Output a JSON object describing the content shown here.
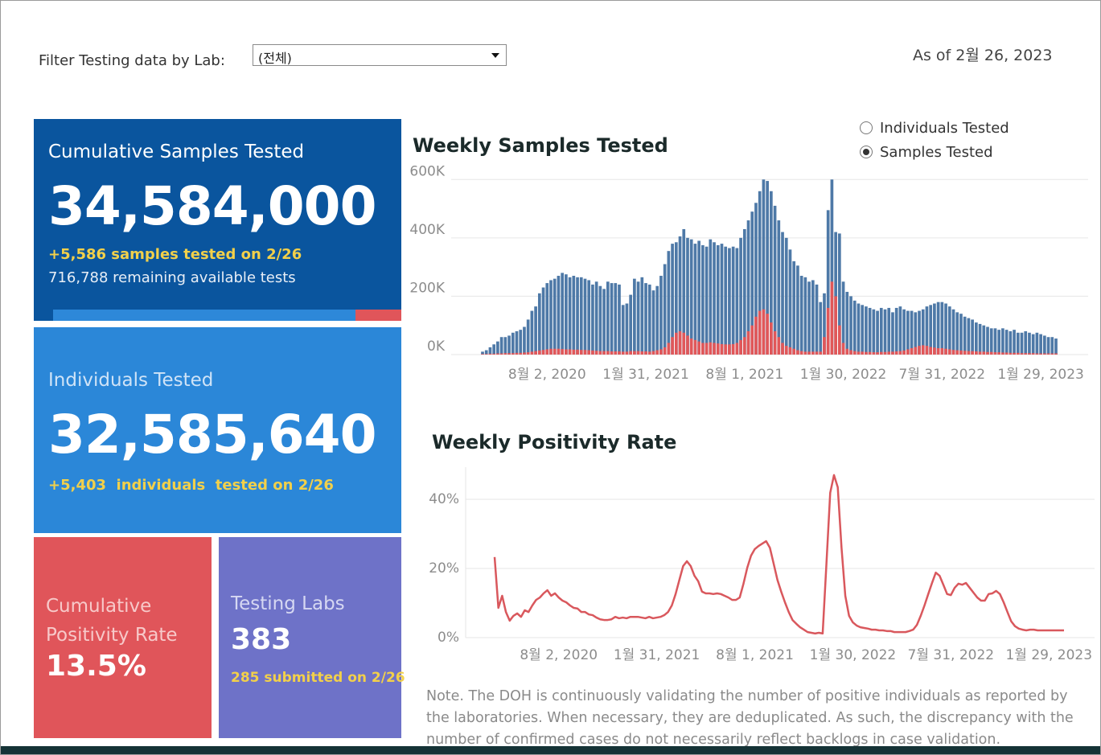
{
  "filter": {
    "label": "Filter Testing data by Lab:",
    "selected": "(전체)"
  },
  "as_of": "As of 2월 26, 2023",
  "cards": [
    {
      "title": "Cumulative Samples Tested",
      "value": "34,584,000",
      "detail": "+5,586 samples tested on 2/26",
      "note": "716,788 remaining available tests"
    },
    {
      "title": "Individuals Tested",
      "value": "32,585,640",
      "detail": "+5,403  individuals  tested on 2/26"
    },
    {
      "title": "Cumulative Positivity Rate",
      "value": "13.5%"
    },
    {
      "title": "Testing Labs",
      "value": "383",
      "detail": "285 submitted on 2/26"
    }
  ],
  "toggle": {
    "options": [
      "Individuals Tested",
      "Samples Tested"
    ],
    "selected": 1
  },
  "chart_data": [
    {
      "type": "bar",
      "title": "Weekly Samples Tested",
      "bar_mode": "overlay",
      "grid": true,
      "x": [
        "4월 5, 2020",
        "4월 12, 2020",
        "4월 19, 2020",
        "4월 26, 2020",
        "5월 3, 2020",
        "5월 10, 2020",
        "5월 17, 2020",
        "5월 24, 2020",
        "5월 31, 2020",
        "6월 7, 2020",
        "6월 14, 2020",
        "6월 21, 2020",
        "6월 28, 2020",
        "7월 5, 2020",
        "7월 12, 2020",
        "7월 19, 2020",
        "7월 26, 2020",
        "8월 2, 2020",
        "8월 9, 2020",
        "8월 16, 2020",
        "8월 23, 2020",
        "8월 30, 2020",
        "9월 6, 2020",
        "9월 13, 2020",
        "9월 20, 2020",
        "9월 27, 2020",
        "10월 4, 2020",
        "10월 11, 2020",
        "10월 18, 2020",
        "10월 25, 2020",
        "11월 1, 2020",
        "11월 8, 2020",
        "11월 15, 2020",
        "11월 22, 2020",
        "11월 29, 2020",
        "12월 6, 2020",
        "12월 13, 2020",
        "12월 20, 2020",
        "12월 27, 2020",
        "1월 3, 2021",
        "1월 10, 2021",
        "1월 17, 2021",
        "1월 24, 2021",
        "1월 31, 2021",
        "2월 7, 2021",
        "2월 14, 2021",
        "2월 21, 2021",
        "2월 28, 2021",
        "3월 7, 2021",
        "3월 14, 2021",
        "3월 21, 2021",
        "3월 28, 2021",
        "4월 4, 2021",
        "4월 11, 2021",
        "4월 18, 2021",
        "4월 25, 2021",
        "5월 2, 2021",
        "5월 9, 2021",
        "5월 16, 2021",
        "5월 23, 2021",
        "5월 30, 2021",
        "6월 6, 2021",
        "6월 13, 2021",
        "6월 20, 2021",
        "6월 27, 2021",
        "7월 4, 2021",
        "7월 11, 2021",
        "7월 18, 2021",
        "7월 25, 2021",
        "8월 1, 2021",
        "8월 8, 2021",
        "8월 15, 2021",
        "8월 22, 2021",
        "8월 29, 2021",
        "9월 5, 2021",
        "9월 12, 2021",
        "9월 19, 2021",
        "9월 26, 2021",
        "10월 3, 2021",
        "10월 10, 2021",
        "10월 17, 2021",
        "10월 24, 2021",
        "10월 31, 2021",
        "11월 7, 2021",
        "11월 14, 2021",
        "11월 21, 2021",
        "11월 28, 2021",
        "12월 5, 2021",
        "12월 12, 2021",
        "12월 19, 2021",
        "12월 26, 2021",
        "1월 2, 2022",
        "1월 9, 2022",
        "1월 16, 2022",
        "1월 23, 2022",
        "1월 30, 2022",
        "2월 6, 2022",
        "2월 13, 2022",
        "2월 20, 2022",
        "2월 27, 2022",
        "3월 6, 2022",
        "3월 13, 2022",
        "3월 20, 2022",
        "3월 27, 2022",
        "4월 3, 2022",
        "4월 10, 2022",
        "4월 17, 2022",
        "4월 24, 2022",
        "5월 1, 2022",
        "5월 8, 2022",
        "5월 15, 2022",
        "5월 22, 2022",
        "5월 29, 2022",
        "6월 5, 2022",
        "6월 12, 2022",
        "6월 19, 2022",
        "6월 26, 2022",
        "7월 3, 2022",
        "7월 10, 2022",
        "7월 17, 2022",
        "7월 24, 2022",
        "7월 31, 2022",
        "8월 7, 2022",
        "8월 14, 2022",
        "8월 21, 2022",
        "8월 28, 2022",
        "9월 4, 2022",
        "9월 11, 2022",
        "9월 18, 2022",
        "9월 25, 2022",
        "10월 2, 2022",
        "10월 9, 2022",
        "10월 16, 2022",
        "10월 23, 2022",
        "10월 30, 2022",
        "11월 6, 2022",
        "11월 13, 2022",
        "11월 20, 2022",
        "11월 27, 2022",
        "12월 4, 2022",
        "12월 11, 2022",
        "12월 18, 2022",
        "12월 25, 2022",
        "1월 1, 2023",
        "1월 8, 2023",
        "1월 15, 2023",
        "1월 22, 2023",
        "1월 29, 2023",
        "2월 5, 2023",
        "2월 12, 2023",
        "2월 19, 2023",
        "2월 26, 2023"
      ],
      "series": [
        {
          "color": "#4e79a7",
          "values": [
            10000,
            15000,
            25000,
            35000,
            45000,
            60000,
            60000,
            65000,
            75000,
            80000,
            85000,
            95000,
            120000,
            150000,
            165000,
            210000,
            230000,
            245000,
            255000,
            260000,
            270000,
            280000,
            275000,
            265000,
            270000,
            265000,
            265000,
            260000,
            255000,
            240000,
            250000,
            235000,
            225000,
            250000,
            245000,
            245000,
            240000,
            170000,
            175000,
            205000,
            260000,
            250000,
            265000,
            245000,
            240000,
            220000,
            235000,
            270000,
            310000,
            355000,
            380000,
            385000,
            405000,
            430000,
            400000,
            395000,
            380000,
            390000,
            375000,
            370000,
            395000,
            385000,
            375000,
            380000,
            370000,
            365000,
            370000,
            365000,
            400000,
            430000,
            460000,
            490000,
            520000,
            560000,
            600000,
            595000,
            560000,
            510000,
            460000,
            420000,
            400000,
            360000,
            320000,
            305000,
            270000,
            265000,
            250000,
            255000,
            240000,
            180000,
            210000,
            495000,
            600000,
            420000,
            415000,
            250000,
            215000,
            200000,
            185000,
            175000,
            170000,
            165000,
            160000,
            155000,
            150000,
            160000,
            155000,
            160000,
            145000,
            160000,
            165000,
            155000,
            150000,
            150000,
            145000,
            150000,
            155000,
            165000,
            170000,
            175000,
            180000,
            180000,
            175000,
            165000,
            155000,
            145000,
            140000,
            130000,
            125000,
            120000,
            110000,
            105000,
            100000,
            95000,
            90000,
            90000,
            85000,
            90000,
            85000,
            80000,
            85000,
            75000,
            75000,
            80000,
            75000,
            70000,
            75000,
            70000,
            65000,
            60000,
            60000,
            55000
          ]
        },
        {
          "color": "#e15759",
          "values": [
            2000,
            2000,
            3000,
            3000,
            4000,
            4000,
            5000,
            5000,
            5000,
            6000,
            6000,
            7000,
            8000,
            10000,
            12000,
            14000,
            16000,
            18000,
            20000,
            20000,
            20000,
            19000,
            18000,
            18000,
            17000,
            17000,
            16000,
            16000,
            15000,
            14000,
            13000,
            12000,
            12000,
            12000,
            11000,
            11000,
            11000,
            10000,
            10000,
            12000,
            12000,
            12000,
            11000,
            11000,
            10000,
            12000,
            15000,
            18000,
            25000,
            40000,
            60000,
            75000,
            80000,
            75000,
            65000,
            55000,
            50000,
            45000,
            40000,
            40000,
            42000,
            40000,
            38000,
            36000,
            35000,
            35000,
            36000,
            40000,
            50000,
            60000,
            80000,
            100000,
            130000,
            150000,
            155000,
            140000,
            110000,
            80000,
            60000,
            40000,
            30000,
            25000,
            20000,
            15000,
            12000,
            10000,
            10000,
            10000,
            10000,
            10000,
            60000,
            160000,
            250000,
            200000,
            100000,
            40000,
            20000,
            15000,
            12000,
            10000,
            10000,
            9000,
            9000,
            8000,
            8000,
            9000,
            9000,
            10000,
            10000,
            11000,
            12000,
            14000,
            18000,
            22000,
            26000,
            30000,
            32000,
            30000,
            26000,
            24000,
            22000,
            22000,
            20000,
            18000,
            16000,
            15000,
            14000,
            13000,
            12000,
            12000,
            11000,
            10000,
            10000,
            9000,
            9000,
            8000,
            8000,
            7000,
            7000,
            6000,
            6000,
            6000,
            5000,
            5000,
            5000,
            5000,
            4000,
            4000,
            4000,
            4000,
            4000,
            4000
          ]
        }
      ],
      "ylim": [
        0,
        620000
      ],
      "yticks": [
        {
          "value": 0,
          "label": "0K"
        },
        {
          "value": 200000,
          "label": "200K"
        },
        {
          "value": 400000,
          "label": "400K"
        },
        {
          "value": 600000,
          "label": "600K"
        }
      ],
      "xticks": [
        "8월 2, 2020",
        "1월 31, 2021",
        "8월 1, 2021",
        "1월 30, 2022",
        "7월 31, 2022",
        "1월 29, 2023"
      ]
    },
    {
      "type": "line",
      "title": "Weekly Positivity Rate",
      "grid": true,
      "x": [
        "4월 5, 2020",
        "4월 12, 2020",
        "4월 19, 2020",
        "4월 26, 2020",
        "5월 3, 2020",
        "5월 10, 2020",
        "5월 17, 2020",
        "5월 24, 2020",
        "5월 31, 2020",
        "6월 7, 2020",
        "6월 14, 2020",
        "6월 21, 2020",
        "6월 28, 2020",
        "7월 5, 2020",
        "7월 12, 2020",
        "7월 19, 2020",
        "7월 26, 2020",
        "8월 2, 2020",
        "8월 9, 2020",
        "8월 16, 2020",
        "8월 23, 2020",
        "8월 30, 2020",
        "9월 6, 2020",
        "9월 13, 2020",
        "9월 20, 2020",
        "9월 27, 2020",
        "10월 4, 2020",
        "10월 11, 2020",
        "10월 18, 2020",
        "10월 25, 2020",
        "11월 1, 2020",
        "11월 8, 2020",
        "11월 15, 2020",
        "11월 22, 2020",
        "11월 29, 2020",
        "12월 6, 2020",
        "12월 13, 2020",
        "12월 20, 2020",
        "12월 27, 2020",
        "1월 3, 2021",
        "1월 10, 2021",
        "1월 17, 2021",
        "1월 24, 2021",
        "1월 31, 2021",
        "2월 7, 2021",
        "2월 14, 2021",
        "2월 21, 2021",
        "2월 28, 2021",
        "3월 7, 2021",
        "3월 14, 2021",
        "3월 21, 2021",
        "3월 28, 2021",
        "4월 4, 2021",
        "4월 11, 2021",
        "4월 18, 2021",
        "4월 25, 2021",
        "5월 2, 2021",
        "5월 9, 2021",
        "5월 16, 2021",
        "5월 23, 2021",
        "5월 30, 2021",
        "6월 6, 2021",
        "6월 13, 2021",
        "6월 20, 2021",
        "6월 27, 2021",
        "7월 4, 2021",
        "7월 11, 2021",
        "7월 18, 2021",
        "7월 25, 2021",
        "8월 1, 2021",
        "8월 8, 2021",
        "8월 15, 2021",
        "8월 22, 2021",
        "8월 29, 2021",
        "9월 5, 2021",
        "9월 12, 2021",
        "9월 19, 2021",
        "9월 26, 2021",
        "10월 3, 2021",
        "10월 10, 2021",
        "10월 17, 2021",
        "10월 24, 2021",
        "10월 31, 2021",
        "11월 7, 2021",
        "11월 14, 2021",
        "11월 21, 2021",
        "11월 28, 2021",
        "12월 5, 2021",
        "12월 12, 2021",
        "12월 19, 2021",
        "12월 26, 2021",
        "1월 2, 2022",
        "1월 9, 2022",
        "1월 16, 2022",
        "1월 23, 2022",
        "1월 30, 2022",
        "2월 6, 2022",
        "2월 13, 2022",
        "2월 20, 2022",
        "2월 27, 2022",
        "3월 6, 2022",
        "3월 13, 2022",
        "3월 20, 2022",
        "3월 27, 2022",
        "4월 3, 2022",
        "4월 10, 2022",
        "4월 17, 2022",
        "4월 24, 2022",
        "5월 1, 2022",
        "5월 8, 2022",
        "5월 15, 2022",
        "5월 22, 2022",
        "5월 29, 2022",
        "6월 5, 2022",
        "6월 12, 2022",
        "6월 19, 2022",
        "6월 26, 2022",
        "7월 3, 2022",
        "7월 10, 2022",
        "7월 17, 2022",
        "7월 24, 2022",
        "7월 31, 2022",
        "8월 7, 2022",
        "8월 14, 2022",
        "8월 21, 2022",
        "8월 28, 2022",
        "9월 4, 2022",
        "9월 11, 2022",
        "9월 18, 2022",
        "9월 25, 2022",
        "10월 2, 2022",
        "10월 9, 2022",
        "10월 16, 2022",
        "10월 23, 2022",
        "10월 30, 2022",
        "11월 6, 2022",
        "11월 13, 2022",
        "11월 20, 2022",
        "11월 27, 2022",
        "12월 4, 2022",
        "12월 11, 2022",
        "12월 18, 2022",
        "12월 25, 2022",
        "1월 1, 2023",
        "1월 8, 2023",
        "1월 15, 2023",
        "1월 22, 2023",
        "1월 29, 2023",
        "2월 5, 2023",
        "2월 12, 2023",
        "2월 19, 2023",
        "2월 26, 2023"
      ],
      "series": [
        {
          "color": "#d9585d",
          "values": [
            23.3,
            8.6,
            12.1,
            7.4,
            4.9,
            6.3,
            7.0,
            6.0,
            7.9,
            7.4,
            9.3,
            10.9,
            11.6,
            12.8,
            13.7,
            12.1,
            12.8,
            11.6,
            10.7,
            10.2,
            9.3,
            8.6,
            8.4,
            7.4,
            7.4,
            6.7,
            6.5,
            5.8,
            5.3,
            5.1,
            5.1,
            5.3,
            6.0,
            5.6,
            5.8,
            5.6,
            6.0,
            6.0,
            6.0,
            5.8,
            5.6,
            6.0,
            5.6,
            5.8,
            6.0,
            6.5,
            7.4,
            9.3,
            12.6,
            16.7,
            20.7,
            22.1,
            20.7,
            17.9,
            16.3,
            13.3,
            12.8,
            12.8,
            12.6,
            12.8,
            12.6,
            12.1,
            11.6,
            10.9,
            10.9,
            11.6,
            15.6,
            20.2,
            23.7,
            25.6,
            26.5,
            27.2,
            27.9,
            26.0,
            21.4,
            16.7,
            13.3,
            10.2,
            7.4,
            5.1,
            4.0,
            3.0,
            2.3,
            1.6,
            1.4,
            1.2,
            1.4,
            1.2,
            21.4,
            41.9,
            47.0,
            43.5,
            26.0,
            12.1,
            6.3,
            4.4,
            3.5,
            3.0,
            2.8,
            2.6,
            2.3,
            2.3,
            2.1,
            2.1,
            1.9,
            1.9,
            1.6,
            1.6,
            1.6,
            1.6,
            1.9,
            2.3,
            3.7,
            6.3,
            9.3,
            12.6,
            15.8,
            18.8,
            17.9,
            15.3,
            12.6,
            12.3,
            14.4,
            15.6,
            15.3,
            15.8,
            14.4,
            13.0,
            11.6,
            10.7,
            10.7,
            12.6,
            12.8,
            13.5,
            12.6,
            10.2,
            7.4,
            4.7,
            3.3,
            2.6,
            2.3,
            2.1,
            2.3,
            2.3,
            2.1,
            2.1,
            2.1,
            2.1,
            2.1,
            2.1,
            2.1,
            2.1
          ]
        }
      ],
      "ylim": [
        0,
        50
      ],
      "yticks": [
        {
          "value": 0,
          "label": "0%"
        },
        {
          "value": 20,
          "label": "20%"
        },
        {
          "value": 40,
          "label": "40%"
        }
      ],
      "xticks": [
        "8월 2, 2020",
        "1월 31, 2021",
        "8월 1, 2021",
        "1월 30, 2022",
        "7월 31, 2022",
        "1월 29, 2023"
      ]
    }
  ],
  "note": "Note. The DOH is continuously validating the number of positive individuals as reported by the laboratories. When necessary, they are deduplicated. As such, the discrepancy with the number of confirmed cases do not necessarily reflect backlogs in case validation."
}
